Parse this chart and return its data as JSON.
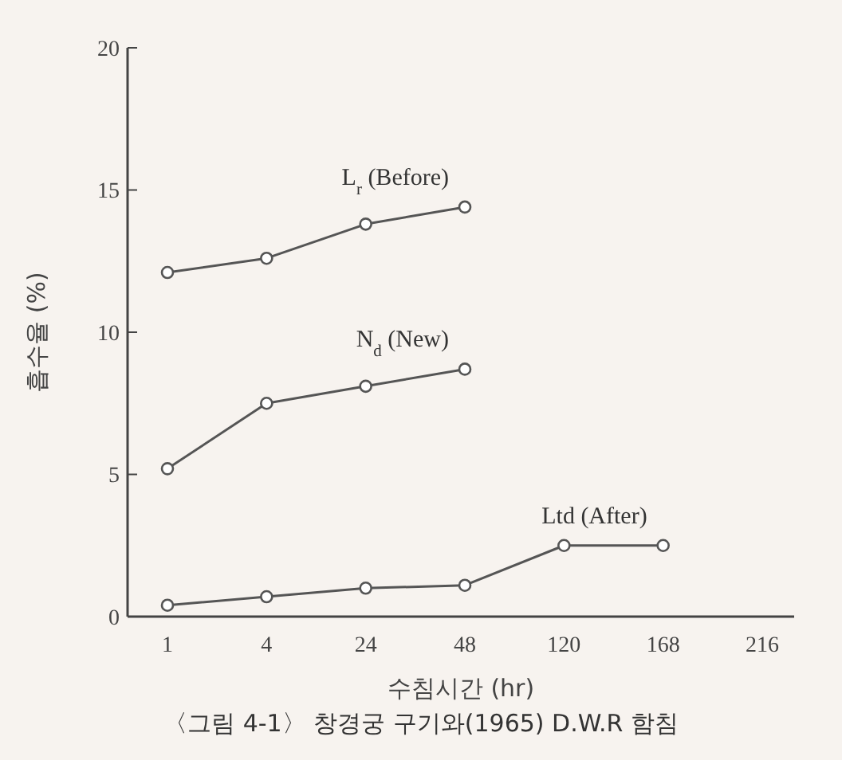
{
  "chart_data": {
    "type": "line",
    "categories": [
      "1",
      "4",
      "24",
      "48",
      "120",
      "168",
      "216"
    ],
    "xlabel": "수침시간 (hr)",
    "ylabel": "흡수율 (%)",
    "annotations": [
      "〈그림 4-1〉 창경궁 구기와(1965) D.W.R 함침"
    ],
    "ylim": [
      0,
      20
    ],
    "yticks": [
      0,
      5,
      10,
      15,
      20
    ],
    "grid": false,
    "marker": "circle",
    "line_style": "solid",
    "series": [
      {
        "name": "L$_{r}$ (Before)",
        "color": "#555555",
        "values": [
          12.1,
          12.6,
          13.8,
          14.4,
          null,
          null,
          null
        ]
      },
      {
        "name": "N$_{d}$ (New)",
        "color": "#555555",
        "values": [
          5.2,
          7.5,
          8.1,
          8.7,
          null,
          null,
          null
        ]
      },
      {
        "name": "Ltd (After)",
        "color": "#555555",
        "values": [
          0.4,
          0.7,
          1.0,
          1.1,
          2.5,
          2.5,
          null
        ]
      }
    ]
  }
}
